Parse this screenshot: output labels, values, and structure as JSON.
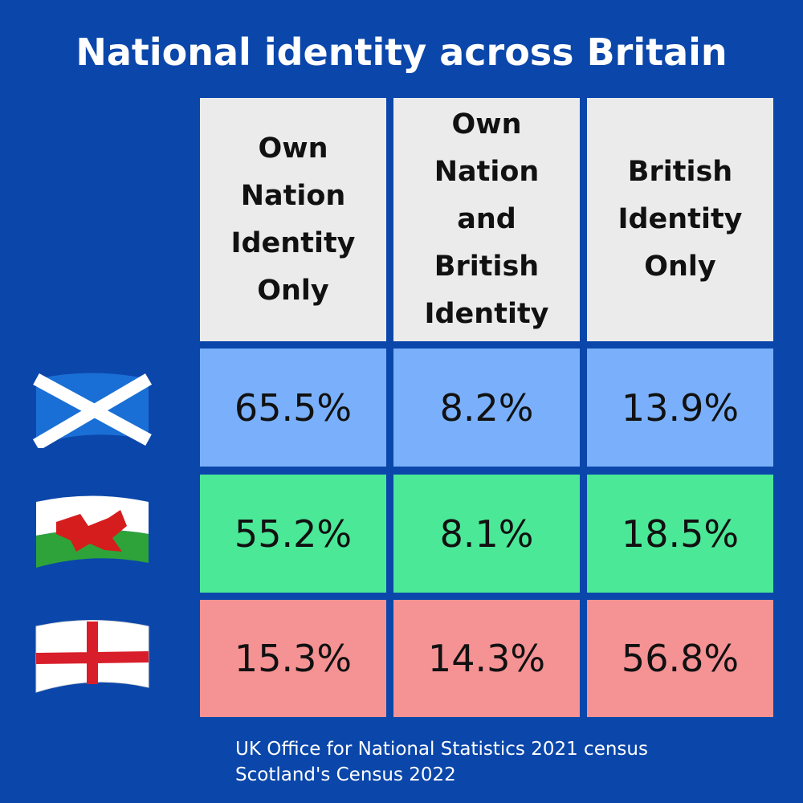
{
  "header": {
    "title": "National identity across Britain"
  },
  "table": {
    "columns": [
      "Own Nation Identity Only",
      "Own Nation and British Identity",
      "British Identity Only"
    ],
    "rows": [
      [
        "65.5%",
        "8.2%",
        "13.9%"
      ],
      [
        "55.2%",
        "8.1%",
        "18.5%"
      ],
      [
        "15.3%",
        "14.3%",
        "56.8%"
      ]
    ]
  },
  "footer": {
    "sources": [
      "UK Office for National Statistics 2021 census",
      "Scotland's Census 2022"
    ]
  }
}
